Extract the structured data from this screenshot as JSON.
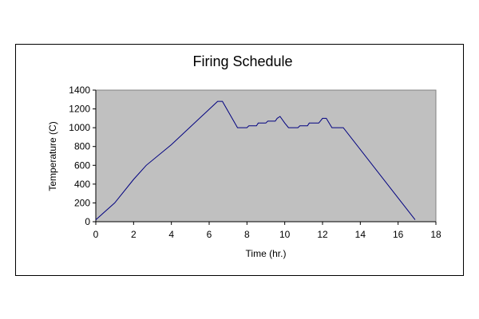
{
  "chart_data": {
    "type": "line",
    "title": "Firing Schedule",
    "xlabel": "Time (hr.)",
    "ylabel": "Temperature (C)",
    "xlim": [
      0,
      18
    ],
    "ylim": [
      0,
      1400
    ],
    "xticks": [
      0,
      2,
      4,
      6,
      8,
      10,
      12,
      14,
      16,
      18
    ],
    "yticks": [
      0,
      200,
      400,
      600,
      800,
      1000,
      1200,
      1400
    ],
    "grid": false,
    "legend": "none",
    "plot_background": "#c0c0c0",
    "line_color": "#000080",
    "series": [
      {
        "x": [
          0,
          1,
          2,
          2.67,
          4,
          6.45,
          6.7,
          7.5,
          8,
          8.1,
          8.5,
          8.6,
          9,
          9.1,
          9.5,
          9.6,
          9.75,
          10,
          10.2,
          10.7,
          10.8,
          11.2,
          11.3,
          11.8,
          12,
          12.2,
          12.5,
          13.1,
          16.9
        ],
        "y": [
          20,
          200,
          450,
          600,
          820,
          1280,
          1280,
          1000,
          1000,
          1020,
          1020,
          1050,
          1050,
          1070,
          1070,
          1100,
          1120,
          1050,
          1000,
          1000,
          1020,
          1020,
          1050,
          1050,
          1100,
          1100,
          1000,
          1000,
          20
        ]
      }
    ]
  }
}
